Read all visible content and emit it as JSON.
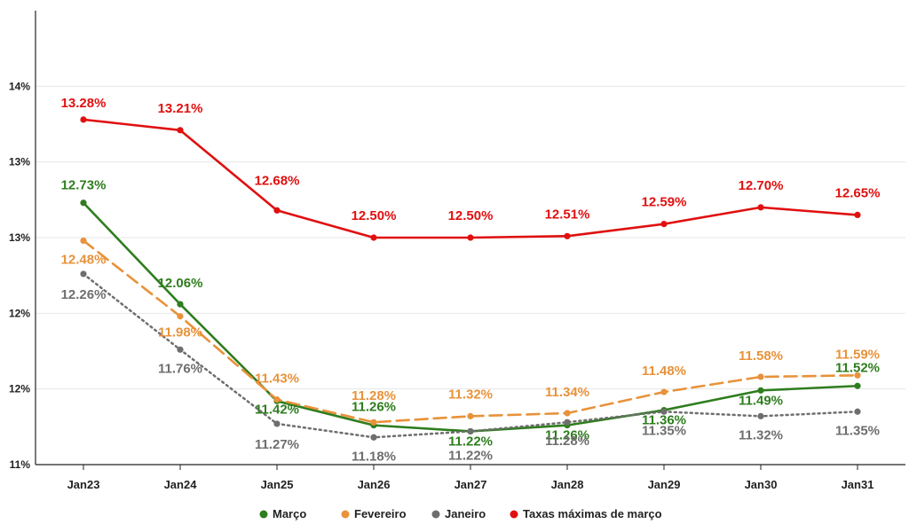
{
  "chart_data": {
    "type": "line",
    "categories": [
      "Jan23",
      "Jan24",
      "Jan25",
      "Jan26",
      "Jan27",
      "Jan28",
      "Jan29",
      "Jan30",
      "Jan31"
    ],
    "ylim": [
      11.0,
      14.0
    ],
    "y_ticks": [
      {
        "value": 11.0,
        "label": "11%"
      },
      {
        "value": 11.5,
        "label": "12%"
      },
      {
        "value": 12.0,
        "label": "12%"
      },
      {
        "value": 12.5,
        "label": "13%"
      },
      {
        "value": 13.0,
        "label": "13%"
      },
      {
        "value": 13.5,
        "label": "14%"
      }
    ],
    "grid": "horizontal",
    "legend_position": "bottom",
    "series": [
      {
        "name": "Março",
        "color": "#2e7d1e",
        "style": "solid",
        "values": [
          12.73,
          12.06,
          11.42,
          11.26,
          11.22,
          11.26,
          11.36,
          11.49,
          11.52
        ],
        "labels": [
          "12.73%",
          "12.06%",
          "11.42%",
          "11.26%",
          "11.22%",
          "11.26%",
          "11.36%",
          "11.49%",
          "11.52%"
        ]
      },
      {
        "name": "Fevereiro",
        "color": "#e8923a",
        "style": "dashed",
        "values": [
          12.48,
          11.98,
          11.43,
          11.28,
          11.32,
          11.34,
          11.48,
          11.58,
          11.59
        ],
        "labels": [
          "12.48%",
          "11.98%",
          "11.43%",
          "11.28%",
          "11.32%",
          "11.34%",
          "11.48%",
          "11.58%",
          "11.59%"
        ]
      },
      {
        "name": "Janeiro",
        "color": "#6e6e6e",
        "style": "dotted",
        "values": [
          12.26,
          11.76,
          11.27,
          11.18,
          11.22,
          11.28,
          11.35,
          11.32,
          11.35
        ],
        "labels": [
          "12.26%",
          "11.76%",
          "11.27%",
          "11.18%",
          "11.22%",
          "11.28%",
          "11.35%",
          "11.32%",
          "11.35%"
        ]
      },
      {
        "name": "Taxas máximas de março",
        "color": "#e01010",
        "style": "solid",
        "values": [
          13.28,
          13.21,
          12.68,
          12.5,
          12.5,
          12.51,
          12.59,
          12.7,
          12.65
        ],
        "labels": [
          "13.28%",
          "13.21%",
          "12.68%",
          "12.50%",
          "12.50%",
          "12.51%",
          "12.59%",
          "12.70%",
          "12.65%"
        ]
      }
    ]
  }
}
